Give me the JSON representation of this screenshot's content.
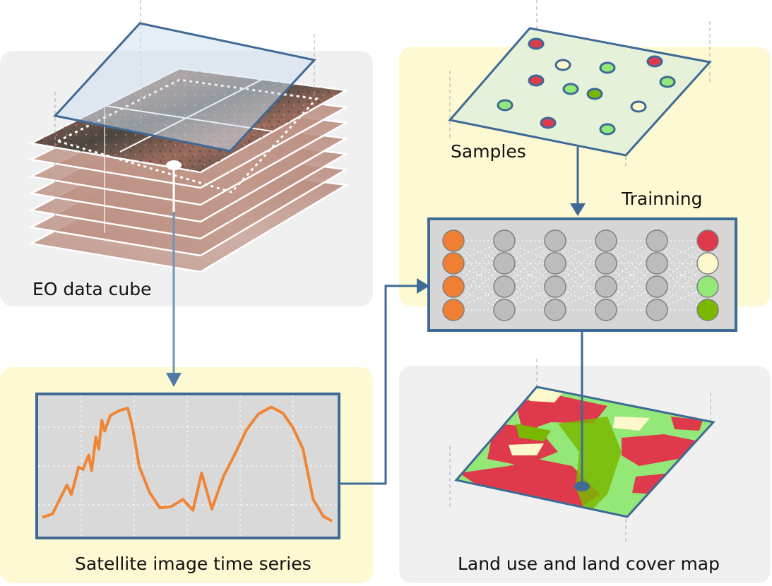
{
  "labels": {
    "eo_cube": "EO data cube",
    "time_series": "Satellite image time series",
    "samples": "Samples",
    "training": "Trainning",
    "map": "Land use and land cover map"
  },
  "colors": {
    "panel_gray": "#f0f0f0",
    "panel_yellow": "#fdf9d2",
    "frame_blue": "#3e6a96",
    "series_orange": "#ef8535",
    "input_node": "#ef7f33",
    "hidden_node": "#bcbcbc",
    "class_red": "#df3a4b",
    "class_cream": "#fdf9cc",
    "class_light_green": "#93e878",
    "class_dark_green": "#7ab800",
    "samples_plane": "#e6f1d9"
  },
  "samples": [
    {
      "color": "class_red"
    },
    {
      "color": "class_cream"
    },
    {
      "color": "class_light_green"
    },
    {
      "color": "class_red"
    },
    {
      "color": "class_red"
    },
    {
      "color": "class_light_green"
    },
    {
      "color": "class_dark_green"
    },
    {
      "color": "class_light_green"
    },
    {
      "color": "class_light_green"
    },
    {
      "color": "class_cream"
    },
    {
      "color": "class_red"
    },
    {
      "color": "class_light_green"
    }
  ],
  "network": {
    "layers": [
      {
        "role": "input",
        "nodes": 4
      },
      {
        "role": "hidden",
        "nodes": 4
      },
      {
        "role": "hidden",
        "nodes": 4
      },
      {
        "role": "hidden",
        "nodes": 4
      },
      {
        "role": "hidden",
        "nodes": 4
      },
      {
        "role": "output",
        "nodes": 4
      }
    ],
    "output_classes": [
      "class_red",
      "class_cream",
      "class_light_green",
      "class_dark_green"
    ]
  },
  "time_series": {
    "points": [
      0.03,
      0.06,
      0.3,
      0.22,
      0.45,
      0.43,
      0.55,
      0.42,
      0.7,
      0.6,
      0.84,
      0.75,
      0.88,
      0.92,
      0.94,
      0.8,
      0.45,
      0.24,
      0.11,
      0.12,
      0.18,
      0.09,
      0.4,
      0.1,
      0.37,
      0.56,
      0.76,
      0.89,
      0.95,
      0.9,
      0.78,
      0.6,
      0.18,
      0.04,
      0.0
    ],
    "x_positions": [
      0.0,
      0.035,
      0.085,
      0.1,
      0.125,
      0.14,
      0.16,
      0.17,
      0.185,
      0.195,
      0.205,
      0.215,
      0.235,
      0.265,
      0.295,
      0.31,
      0.335,
      0.37,
      0.405,
      0.445,
      0.485,
      0.52,
      0.55,
      0.585,
      0.625,
      0.665,
      0.705,
      0.745,
      0.79,
      0.83,
      0.865,
      0.9,
      0.935,
      0.97,
      1.0
    ]
  }
}
